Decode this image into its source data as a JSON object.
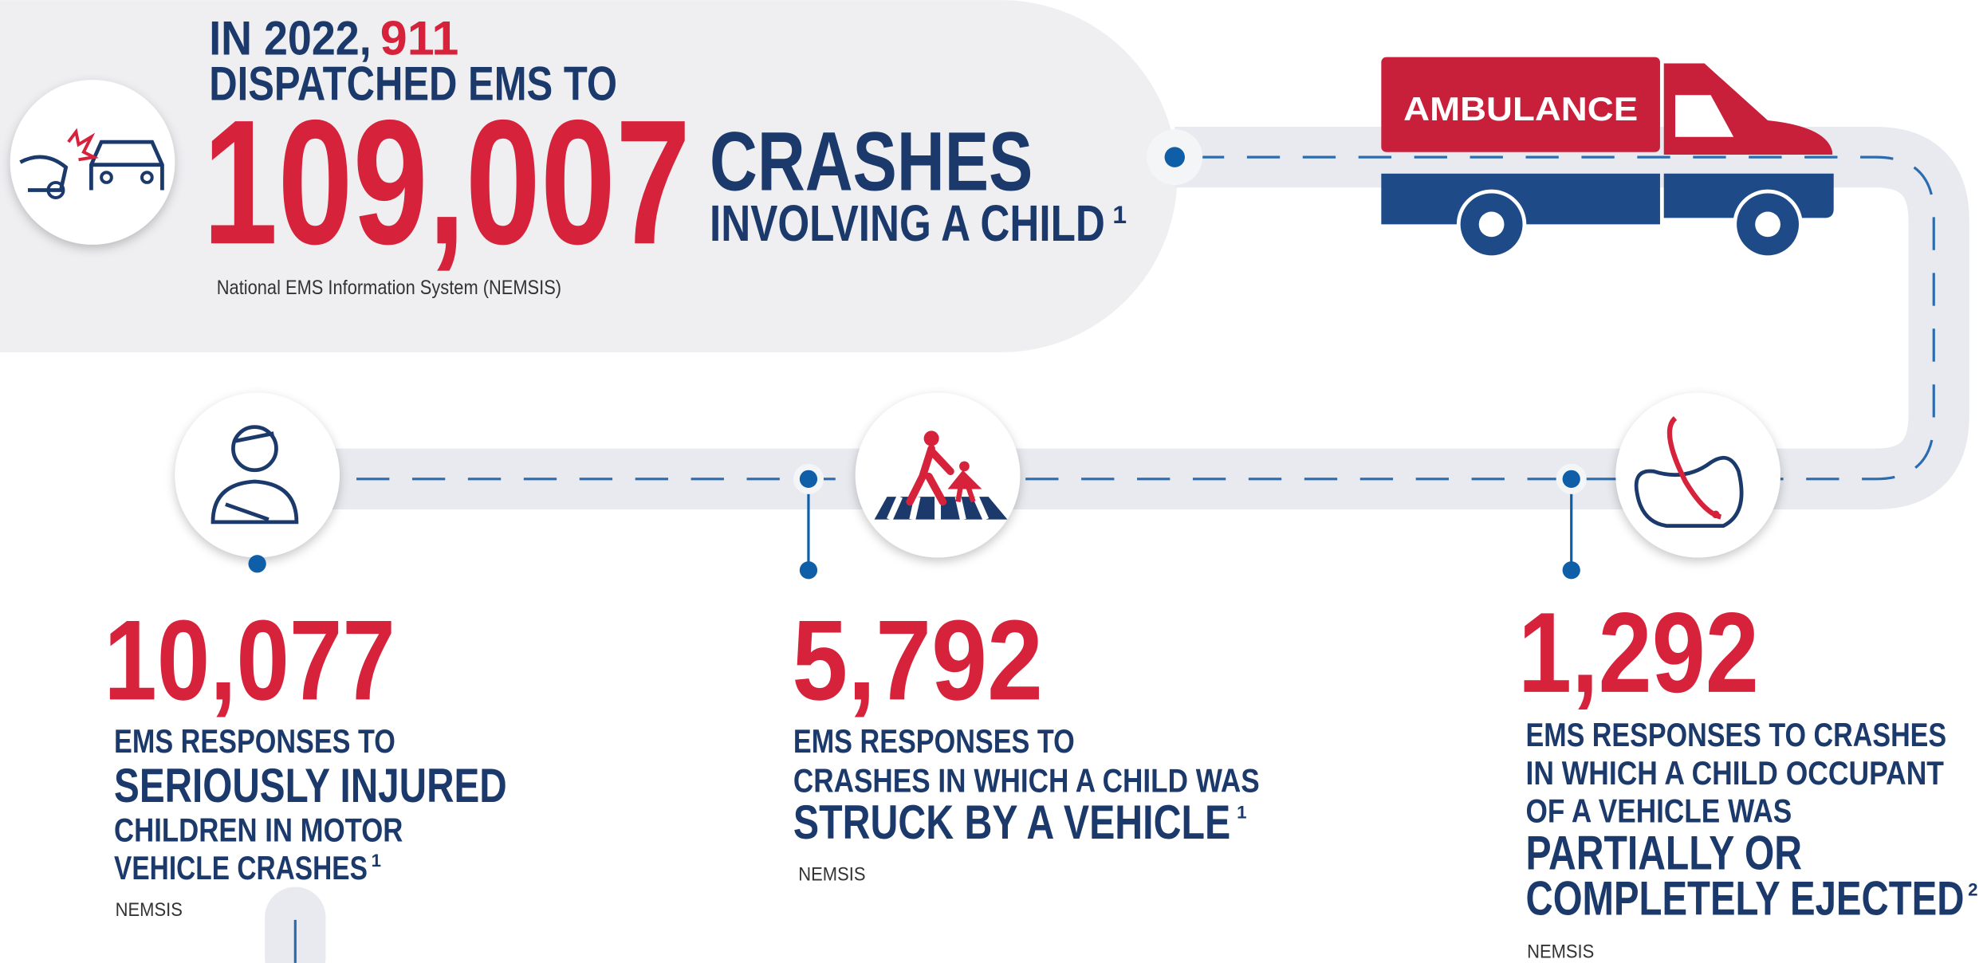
{
  "hero": {
    "intro": "IN 2022,",
    "highlight": "911",
    "line2": "DISPATCHED EMS TO",
    "number": "109,007",
    "headline": "CRASHES",
    "subline": "INVOLVING A CHILD",
    "footnote": "1",
    "source": "National EMS Information System (NEMSIS)"
  },
  "vehicle_label": "AMBULANCE",
  "stats": [
    {
      "number": "10,077",
      "lines": [
        "EMS RESPONSES TO",
        "SERIOUSLY INJURED",
        "CHILDREN IN MOTOR",
        "VEHICLE CRASHES"
      ],
      "footnote": "1",
      "source": "NEMSIS"
    },
    {
      "number": "5,792",
      "lines": [
        "EMS RESPONSES TO",
        "CRASHES IN WHICH A CHILD WAS",
        "STRUCK BY A VEHICLE"
      ],
      "footnote": "1",
      "source": "NEMSIS"
    },
    {
      "number": "1,292",
      "lines": [
        "EMS RESPONSES TO CRASHES",
        "IN WHICH A CHILD OCCUPANT",
        "OF A VEHICLE WAS",
        "PARTIALLY OR",
        "COMPLETELY EJECTED"
      ],
      "footnote": "2",
      "source": "NEMSIS"
    }
  ]
}
